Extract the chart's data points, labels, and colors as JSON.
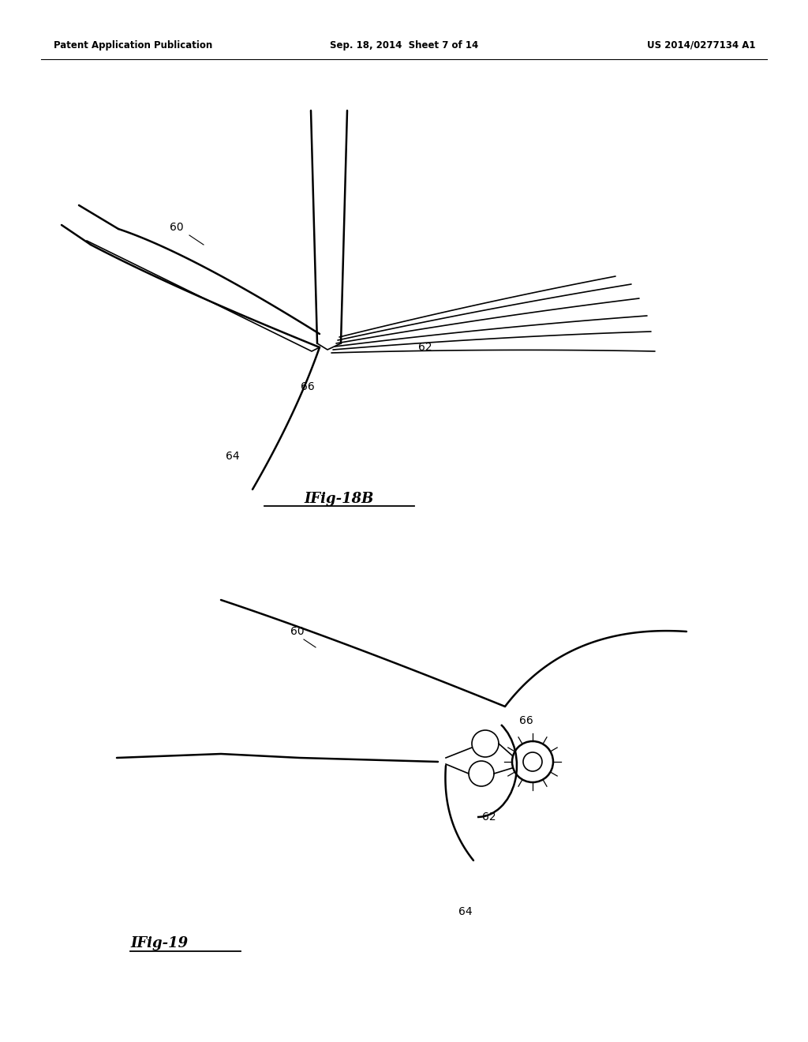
{
  "bg_color": "#ffffff",
  "header_left": "Patent Application Publication",
  "header_center": "Sep. 18, 2014  Sheet 7 of 14",
  "header_right": "US 2014/0277134 A1",
  "fig18b_label": "IFig-18B",
  "fig19_label": "IFig-19",
  "lw_main": 1.8,
  "lw_thin": 1.2
}
